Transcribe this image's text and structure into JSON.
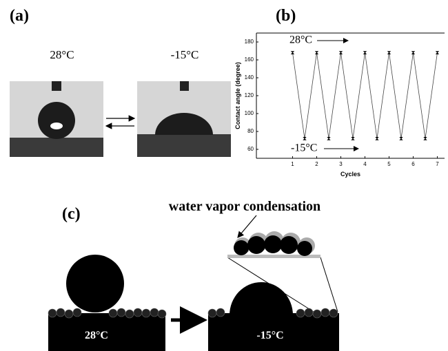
{
  "panel_a": {
    "label": "(a)",
    "left_caption": "28°C",
    "right_caption": "-15°C"
  },
  "panel_b_label": "(b)",
  "chart_data": {
    "type": "line",
    "x_label": "Cycles",
    "y_label": "Contact angle (degree)",
    "x": [
      1,
      1.5,
      2,
      2.5,
      3,
      3.5,
      4,
      4.5,
      5,
      5.5,
      6,
      6.5,
      7
    ],
    "values": [
      168,
      72,
      168,
      72,
      168,
      72,
      168,
      72,
      168,
      72,
      168,
      72,
      168
    ],
    "color": "#444",
    "xlim": [
      -0.5,
      7.3
    ],
    "xticks": [
      1,
      2,
      3,
      4,
      5,
      6,
      7
    ],
    "ylim": [
      50,
      190
    ],
    "yticks": [
      60,
      80,
      100,
      120,
      140,
      160,
      180
    ],
    "annotations": [
      "28°C",
      "-15°C"
    ]
  },
  "panel_c": {
    "label": "(c)",
    "callout": "water vapor condensation",
    "left_caption": "28°C",
    "right_caption": "-15°C"
  }
}
